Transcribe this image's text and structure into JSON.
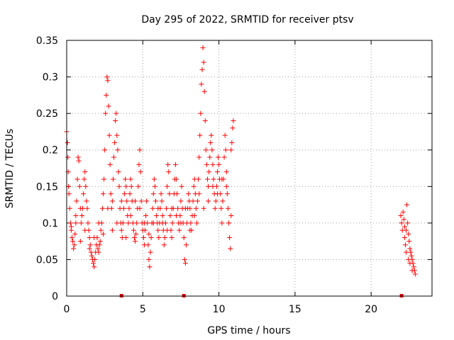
{
  "chart_data": {
    "type": "scatter",
    "title": "Day 295 of 2022, SRMTID for receiver ptsv",
    "xlabel": "GPS time / hours",
    "ylabel": "SRMTID / TECUs",
    "xlim": [
      0,
      24
    ],
    "ylim": [
      0,
      0.35
    ],
    "x_ticks": [
      "0",
      "5",
      "10",
      "15",
      "20"
    ],
    "y_ticks": [
      "0",
      "0.05",
      "0.1",
      "0.15",
      "0.2",
      "0.25",
      "0.3",
      "0.35"
    ],
    "grid": true,
    "marker": "+",
    "color": "#ff0000",
    "axis_markers_x": [
      3.6,
      7.7,
      22.0
    ],
    "series": [
      {
        "points": [
          [
            0.0,
            0.225
          ],
          [
            0.05,
            0.21
          ],
          [
            0.08,
            0.19
          ],
          [
            0.1,
            0.17
          ],
          [
            0.12,
            0.15
          ],
          [
            0.15,
            0.14
          ],
          [
            0.2,
            0.12
          ],
          [
            0.25,
            0.1
          ],
          [
            0.3,
            0.09
          ],
          [
            0.35,
            0.08
          ],
          [
            0.4,
            0.075
          ],
          [
            0.45,
            0.065
          ],
          [
            0.5,
            0.07
          ],
          [
            0.55,
            0.085
          ],
          [
            0.6,
            0.1
          ],
          [
            0.65,
            0.13
          ],
          [
            0.7,
            0.16
          ],
          [
            0.75,
            0.19
          ],
          [
            0.8,
            0.185
          ],
          [
            0.85,
            0.15
          ],
          [
            0.9,
            0.12
          ],
          [
            0.95,
            0.1
          ],
          [
            1.0,
            0.11
          ],
          [
            1.05,
            0.12
          ],
          [
            1.1,
            0.14
          ],
          [
            1.15,
            0.16
          ],
          [
            1.2,
            0.17
          ],
          [
            1.25,
            0.15
          ],
          [
            1.3,
            0.13
          ],
          [
            1.35,
            0.12
          ],
          [
            1.4,
            0.1
          ],
          [
            1.45,
            0.09
          ],
          [
            1.5,
            0.08
          ],
          [
            1.55,
            0.07
          ],
          [
            1.6,
            0.06
          ],
          [
            1.65,
            0.055
          ],
          [
            1.7,
            0.05
          ],
          [
            1.75,
            0.045
          ],
          [
            1.8,
            0.04
          ],
          [
            1.85,
            0.05
          ],
          [
            1.9,
            0.06
          ],
          [
            1.95,
            0.07
          ],
          [
            2.0,
            0.08
          ],
          [
            2.05,
            0.065
          ],
          [
            2.1,
            0.06
          ],
          [
            2.15,
            0.07
          ],
          [
            2.2,
            0.075
          ],
          [
            2.25,
            0.09
          ],
          [
            2.3,
            0.1
          ],
          [
            2.35,
            0.12
          ],
          [
            2.4,
            0.14
          ],
          [
            2.45,
            0.16
          ],
          [
            2.5,
            0.2
          ],
          [
            2.55,
            0.25
          ],
          [
            2.6,
            0.275
          ],
          [
            2.65,
            0.3
          ],
          [
            2.7,
            0.295
          ],
          [
            2.75,
            0.26
          ],
          [
            2.8,
            0.22
          ],
          [
            2.85,
            0.18
          ],
          [
            2.9,
            0.14
          ],
          [
            2.95,
            0.12
          ],
          [
            3.0,
            0.13
          ],
          [
            3.05,
            0.16
          ],
          [
            3.1,
            0.19
          ],
          [
            3.15,
            0.21
          ],
          [
            3.2,
            0.24
          ],
          [
            3.25,
            0.25
          ],
          [
            3.3,
            0.22
          ],
          [
            3.35,
            0.2
          ],
          [
            3.4,
            0.17
          ],
          [
            3.45,
            0.15
          ],
          [
            3.5,
            0.12
          ],
          [
            3.55,
            0.1
          ],
          [
            3.6,
            0.09
          ],
          [
            3.65,
            0.08
          ],
          [
            3.7,
            0.1
          ],
          [
            3.75,
            0.12
          ],
          [
            3.8,
            0.14
          ],
          [
            3.85,
            0.16
          ],
          [
            3.9,
            0.15
          ],
          [
            3.95,
            0.13
          ],
          [
            4.0,
            0.11
          ],
          [
            4.05,
            0.1
          ],
          [
            4.1,
            0.12
          ],
          [
            4.15,
            0.14
          ],
          [
            4.2,
            0.16
          ],
          [
            4.25,
            0.15
          ],
          [
            4.3,
            0.13
          ],
          [
            4.35,
            0.1
          ],
          [
            4.4,
            0.09
          ],
          [
            4.45,
            0.08
          ],
          [
            4.5,
            0.075
          ],
          [
            4.55,
            0.085
          ],
          [
            4.6,
            0.1
          ],
          [
            4.65,
            0.12
          ],
          [
            4.7,
            0.15
          ],
          [
            4.75,
            0.18
          ],
          [
            4.8,
            0.2
          ],
          [
            4.85,
            0.17
          ],
          [
            4.9,
            0.13
          ],
          [
            4.95,
            0.1
          ],
          [
            5.0,
            0.09
          ],
          [
            5.05,
            0.08
          ],
          [
            5.1,
            0.07
          ],
          [
            5.15,
            0.09
          ],
          [
            5.2,
            0.11
          ],
          [
            5.25,
            0.13
          ],
          [
            5.3,
            0.1
          ],
          [
            5.35,
            0.07
          ],
          [
            5.4,
            0.05
          ],
          [
            5.45,
            0.04
          ],
          [
            5.5,
            0.06
          ],
          [
            5.55,
            0.08
          ],
          [
            5.6,
            0.1
          ],
          [
            5.65,
            0.12
          ],
          [
            5.7,
            0.14
          ],
          [
            5.75,
            0.16
          ],
          [
            5.8,
            0.15
          ],
          [
            5.85,
            0.13
          ],
          [
            5.9,
            0.11
          ],
          [
            5.95,
            0.1
          ],
          [
            6.0,
            0.09
          ],
          [
            6.05,
            0.08
          ],
          [
            6.1,
            0.1
          ],
          [
            6.15,
            0.12
          ],
          [
            6.2,
            0.14
          ],
          [
            6.25,
            0.13
          ],
          [
            6.3,
            0.11
          ],
          [
            6.35,
            0.09
          ],
          [
            6.4,
            0.07
          ],
          [
            6.45,
            0.08
          ],
          [
            6.5,
            0.1
          ],
          [
            6.55,
            0.12
          ],
          [
            6.6,
            0.15
          ],
          [
            6.65,
            0.18
          ],
          [
            6.7,
            0.17
          ],
          [
            6.75,
            0.14
          ],
          [
            6.8,
            0.11
          ],
          [
            6.85,
            0.09
          ],
          [
            6.9,
            0.08
          ],
          [
            6.95,
            0.1
          ],
          [
            7.0,
            0.12
          ],
          [
            7.05,
            0.14
          ],
          [
            7.1,
            0.16
          ],
          [
            7.15,
            0.18
          ],
          [
            7.2,
            0.16
          ],
          [
            7.25,
            0.14
          ],
          [
            7.3,
            0.12
          ],
          [
            7.35,
            0.1
          ],
          [
            7.4,
            0.09
          ],
          [
            7.45,
            0.11
          ],
          [
            7.5,
            0.13
          ],
          [
            7.55,
            0.15
          ],
          [
            7.6,
            0.12
          ],
          [
            7.65,
            0.1
          ],
          [
            7.7,
            0.08
          ],
          [
            7.75,
            0.05
          ],
          [
            7.8,
            0.045
          ],
          [
            7.85,
            0.07
          ],
          [
            7.9,
            0.1
          ],
          [
            7.95,
            0.12
          ],
          [
            8.0,
            0.14
          ],
          [
            8.05,
            0.13
          ],
          [
            8.1,
            0.12
          ],
          [
            8.15,
            0.1
          ],
          [
            8.2,
            0.09
          ],
          [
            8.25,
            0.11
          ],
          [
            8.3,
            0.13
          ],
          [
            8.35,
            0.15
          ],
          [
            8.4,
            0.16
          ],
          [
            8.45,
            0.14
          ],
          [
            8.5,
            0.12
          ],
          [
            8.55,
            0.1
          ],
          [
            8.6,
            0.13
          ],
          [
            8.65,
            0.16
          ],
          [
            8.7,
            0.19
          ],
          [
            8.75,
            0.22
          ],
          [
            8.8,
            0.25
          ],
          [
            8.85,
            0.29
          ],
          [
            8.9,
            0.31
          ],
          [
            8.95,
            0.34
          ],
          [
            9.0,
            0.32
          ],
          [
            9.05,
            0.28
          ],
          [
            9.1,
            0.24
          ],
          [
            9.15,
            0.2
          ],
          [
            9.2,
            0.18
          ],
          [
            9.25,
            0.16
          ],
          [
            9.3,
            0.15
          ],
          [
            9.35,
            0.17
          ],
          [
            9.4,
            0.19
          ],
          [
            9.45,
            0.21
          ],
          [
            9.5,
            0.22
          ],
          [
            9.55,
            0.2
          ],
          [
            9.6,
            0.18
          ],
          [
            9.65,
            0.16
          ],
          [
            9.7,
            0.14
          ],
          [
            9.75,
            0.12
          ],
          [
            9.8,
            0.13
          ],
          [
            9.85,
            0.15
          ],
          [
            9.9,
            0.17
          ],
          [
            9.95,
            0.19
          ],
          [
            10.0,
            0.18
          ],
          [
            10.05,
            0.16
          ],
          [
            10.1,
            0.14
          ],
          [
            10.15,
            0.12
          ],
          [
            10.2,
            0.1
          ],
          [
            10.25,
            0.13
          ],
          [
            10.3,
            0.16
          ],
          [
            10.35,
            0.19
          ],
          [
            10.4,
            0.22
          ],
          [
            10.45,
            0.2
          ],
          [
            10.5,
            0.17
          ],
          [
            10.55,
            0.14
          ],
          [
            10.6,
            0.12
          ],
          [
            10.65,
            0.1
          ],
          [
            10.7,
            0.08
          ],
          [
            10.75,
            0.065
          ],
          [
            10.8,
            0.2
          ],
          [
            10.85,
            0.21
          ],
          [
            10.9,
            0.23
          ],
          [
            10.95,
            0.24
          ],
          [
            0.3,
            0.095
          ],
          [
            0.6,
            0.11
          ],
          [
            0.9,
            0.075
          ],
          [
            1.2,
            0.09
          ],
          [
            1.5,
            0.065
          ],
          [
            1.8,
            0.08
          ],
          [
            2.1,
            0.1
          ],
          [
            2.4,
            0.085
          ],
          [
            2.7,
            0.12
          ],
          [
            3.0,
            0.09
          ],
          [
            3.3,
            0.1
          ],
          [
            3.6,
            0.13
          ],
          [
            3.9,
            0.08
          ],
          [
            4.2,
            0.11
          ],
          [
            4.5,
            0.13
          ],
          [
            4.8,
            0.12
          ],
          [
            5.1,
            0.1
          ],
          [
            5.4,
            0.085
          ],
          [
            5.7,
            0.1
          ],
          [
            6.0,
            0.12
          ],
          [
            6.3,
            0.1
          ],
          [
            6.6,
            0.09
          ],
          [
            6.9,
            0.12
          ],
          [
            7.2,
            0.11
          ],
          [
            7.5,
            0.1
          ],
          [
            7.8,
            0.12
          ],
          [
            8.1,
            0.09
          ],
          [
            8.4,
            0.11
          ],
          [
            8.7,
            0.14
          ],
          [
            9.0,
            0.12
          ],
          [
            9.3,
            0.13
          ],
          [
            9.6,
            0.15
          ],
          [
            9.9,
            0.14
          ],
          [
            10.2,
            0.16
          ],
          [
            10.5,
            0.15
          ],
          [
            10.8,
            0.11
          ],
          [
            21.95,
            0.11
          ],
          [
            22.0,
            0.1
          ],
          [
            22.05,
            0.09
          ],
          [
            22.1,
            0.115
          ],
          [
            22.15,
            0.105
          ],
          [
            22.2,
            0.08
          ],
          [
            22.25,
            0.07
          ],
          [
            22.3,
            0.06
          ],
          [
            22.35,
            0.125
          ],
          [
            22.4,
            0.1
          ],
          [
            22.45,
            0.085
          ],
          [
            22.5,
            0.075
          ],
          [
            22.55,
            0.065
          ],
          [
            22.6,
            0.06
          ],
          [
            22.65,
            0.055
          ],
          [
            22.7,
            0.05
          ],
          [
            22.75,
            0.045
          ],
          [
            22.8,
            0.04
          ],
          [
            22.85,
            0.035
          ],
          [
            22.9,
            0.03
          ],
          [
            22.45,
            0.05
          ],
          [
            22.55,
            0.045
          ],
          [
            22.7,
            0.035
          ],
          [
            22.3,
            0.09
          ],
          [
            22.2,
            0.095
          ]
        ]
      }
    ]
  }
}
